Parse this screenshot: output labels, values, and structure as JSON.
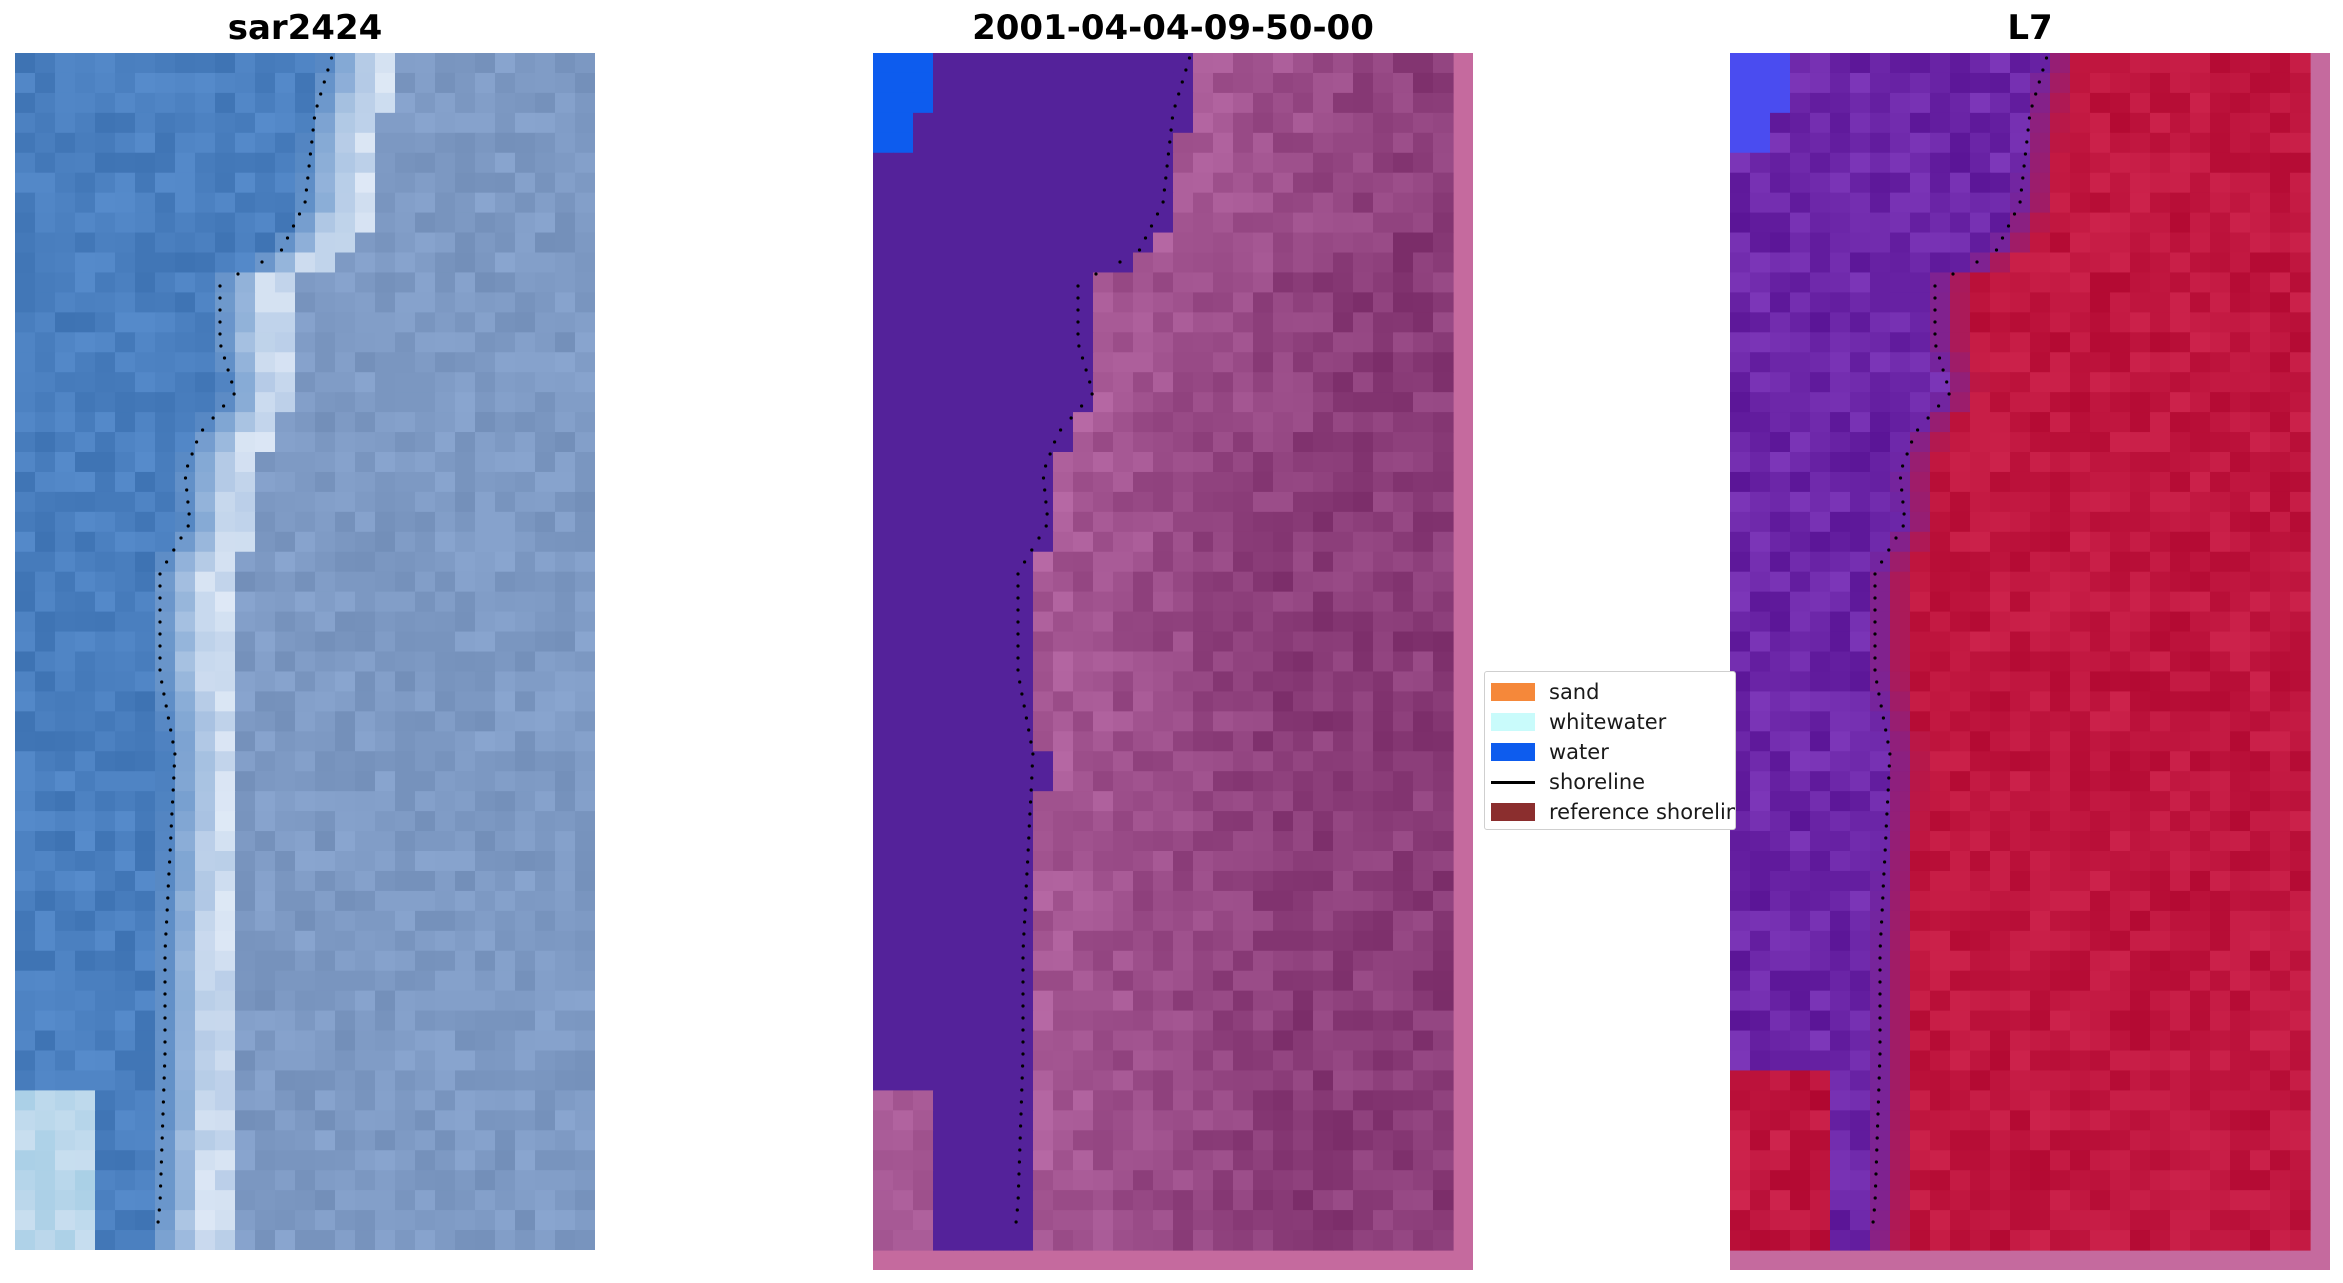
{
  "panels": [
    {
      "title": "sar2424"
    },
    {
      "title": "2001-04-04-09-50-00"
    },
    {
      "title": "L7"
    }
  ],
  "legend": {
    "items": [
      {
        "label": "sand",
        "color": "#f5883a",
        "kind": "patch"
      },
      {
        "label": "whitewater",
        "color": "#c9fbfb",
        "kind": "patch"
      },
      {
        "label": "water",
        "color": "#0d5cee",
        "kind": "patch"
      },
      {
        "label": "shoreline",
        "color": "#000000",
        "kind": "line"
      },
      {
        "label": "reference shoreline",
        "color": "#8b2e2e",
        "kind": "patch"
      }
    ]
  },
  "colors": {
    "rgb_water": "#4a7fbf",
    "rgb_whitewater": "#dfe9f6",
    "class_water": "#54229a",
    "class_land": "#a85a96",
    "class_border": "#c56a9e",
    "class_water_blue": "#0d5cee",
    "ndwi_water": "#6c26a8",
    "ndwi_land": "#c0163f"
  }
}
